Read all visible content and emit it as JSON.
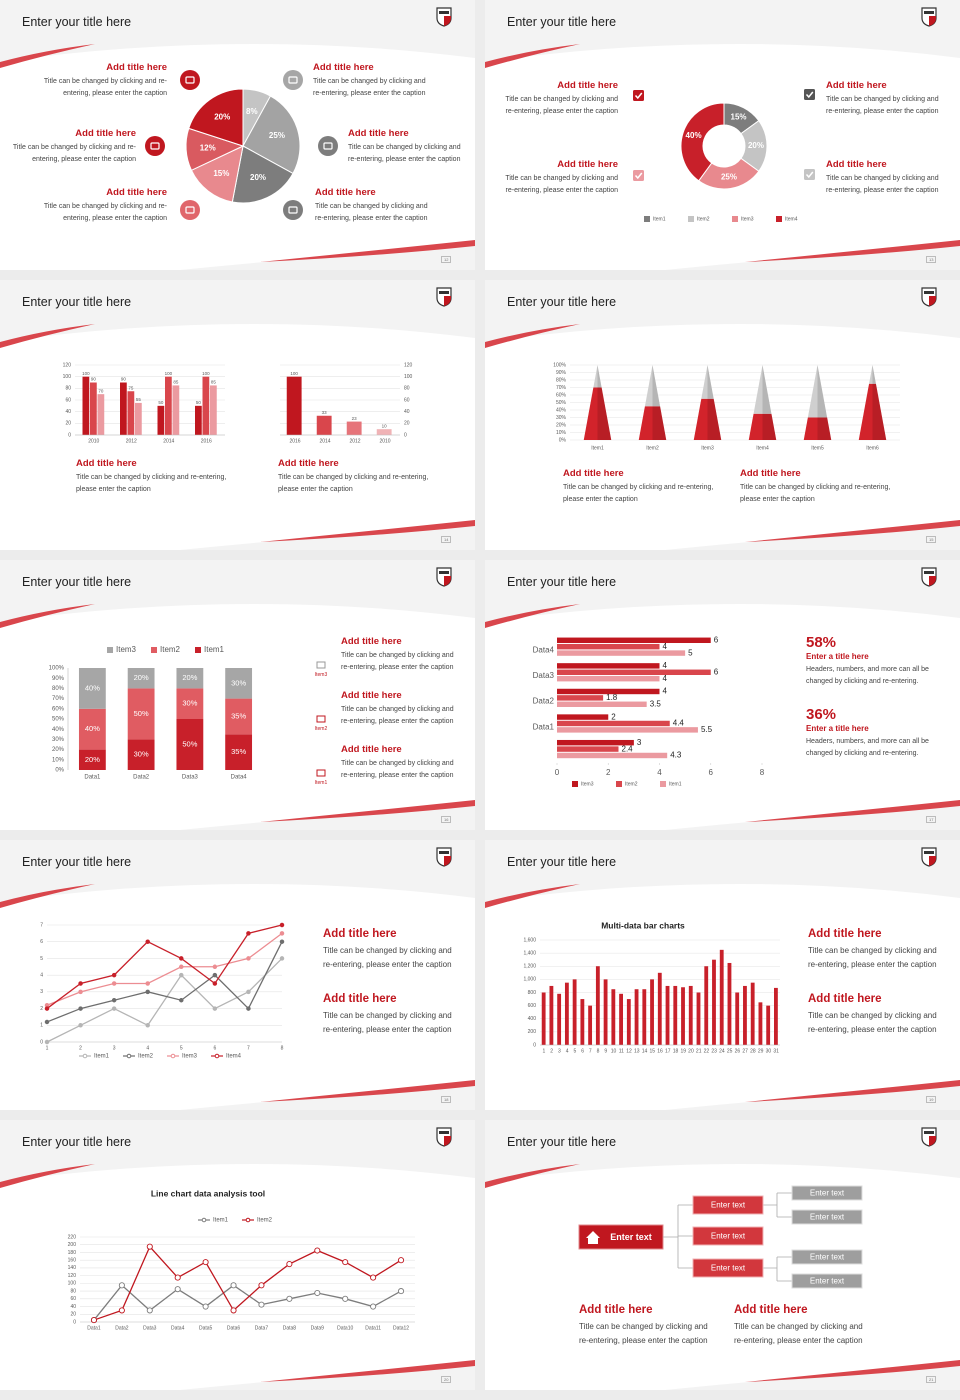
{
  "slides": [
    {
      "title": "Enter your title here",
      "page": "12",
      "blocks": [
        {
          "heading": "Add title here",
          "text": "Title can be changed by clicking and re-entering, please enter the caption"
        },
        {
          "heading": "Add title here",
          "text": "Title can be changed by clicking and re-entering, please enter the caption"
        },
        {
          "heading": "Add title here",
          "text": "Title can be changed by clicking and re-entering, please enter the caption"
        },
        {
          "heading": "Add title here",
          "text": "Title can be changed by clicking and re-entering, please enter the caption"
        },
        {
          "heading": "Add title here",
          "text": "Title can be changed by clicking and re-entering, please enter the caption"
        },
        {
          "heading": "Add title here",
          "text": "Title can be changed by clicking and re-entering, please enter the caption"
        }
      ]
    },
    {
      "title": "Enter your title here",
      "page": "13",
      "blocks": [
        {
          "heading": "Add title here",
          "text": "Title can be changed by clicking and re-entering, please enter the caption"
        },
        {
          "heading": "Add title here",
          "text": "Title can be changed by clicking and re-entering, please enter the caption"
        },
        {
          "heading": "Add title here",
          "text": "Title can be changed by clicking and re-entering, please enter the caption"
        },
        {
          "heading": "Add title here",
          "text": "Title can be changed by clicking and re-entering, please enter the caption"
        }
      ]
    },
    {
      "title": "Enter your title here",
      "page": "14",
      "blocks": [
        {
          "heading": "Add title here",
          "text": "Title can be changed by clicking and re-entering, please enter the caption"
        },
        {
          "heading": "Add title here",
          "text": "Title can be changed by clicking and re-entering, please enter the caption"
        }
      ]
    },
    {
      "title": "Enter your title here",
      "page": "15",
      "blocks": [
        {
          "heading": "Add title here",
          "text": "Title can be changed by clicking and re-entering, please enter the caption"
        },
        {
          "heading": "Add title here",
          "text": "Title can be changed by clicking and re-entering, please enter the caption"
        }
      ]
    },
    {
      "title": "Enter your title here",
      "page": "16",
      "blocks": [
        {
          "icon_label": "Item3",
          "heading": "Add title here",
          "text": "Title can be changed by clicking and re-entering, please enter the caption"
        },
        {
          "icon_label": "Item2",
          "heading": "Add title here",
          "text": "Title can be changed by clicking and re-entering, please enter the caption"
        },
        {
          "icon_label": "Item1",
          "heading": "Add title here",
          "text": "Title can be changed by clicking and re-entering, please enter the caption"
        }
      ]
    },
    {
      "title": "Enter your title here",
      "page": "17",
      "blocks": [
        {
          "heading": "58%",
          "subheading": "Enter a title here",
          "text": "Headers, numbers, and more can all be changed by clicking and re-entering."
        },
        {
          "heading": "36%",
          "subheading": "Enter a title here",
          "text": "Headers, numbers, and more can all be changed by clicking and re-entering."
        }
      ]
    },
    {
      "title": "Enter your title here",
      "page": "18",
      "blocks": [
        {
          "heading": "Add title here",
          "text": "Title can be changed by clicking and re-entering, please enter the caption"
        },
        {
          "heading": "Add title here",
          "text": "Title can be changed by clicking and re-entering, please enter the caption"
        }
      ]
    },
    {
      "title": "Enter your title here",
      "page": "19",
      "blocks": [
        {
          "heading": "Add title here",
          "text": "Title can be changed by clicking and re-entering, please enter the caption"
        },
        {
          "heading": "Add title here",
          "text": "Title can be changed by clicking and re-entering, please enter the caption"
        }
      ]
    },
    {
      "title": "Enter your title here",
      "page": "20",
      "blocks": []
    },
    {
      "title": "Enter your title here",
      "page": "21",
      "diagram": {
        "root": "Enter text",
        "branches": [
          "Enter text",
          "Enter text",
          "Enter text"
        ],
        "leaves": [
          "Enter text",
          "Enter text",
          "Enter text",
          "Enter text"
        ]
      },
      "blocks": [
        {
          "heading": "Add title here",
          "text": "Title can be changed by clicking and re-entering, please enter the caption"
        },
        {
          "heading": "Add title here",
          "text": "Title can be changed by clicking and re-entering, please enter the caption"
        }
      ]
    }
  ],
  "chart_data": [
    {
      "type": "pie",
      "values": [
        8,
        25,
        20,
        15,
        12,
        20
      ],
      "value_labels": [
        "8%",
        "25%",
        "20%",
        "15%",
        "12%",
        "20%"
      ],
      "colors": [
        "#c4c4c4",
        "#a3a3a3",
        "#7d7d7d",
        "#e8898e",
        "#d95a60",
        "#c0171f"
      ]
    },
    {
      "type": "donut",
      "categories": [
        "Item1",
        "Item2",
        "Item3",
        "Item4"
      ],
      "values": [
        15,
        20,
        25,
        40
      ],
      "value_labels": [
        "15%",
        "20%",
        "25%",
        "40%"
      ],
      "colors": [
        "#7d7d7d",
        "#c4c4c4",
        "#e8898e",
        "#c8202a"
      ]
    },
    {
      "type": "bar",
      "categories": [
        "2010",
        "2012",
        "2014",
        "2016"
      ],
      "series": [
        {
          "color": "#c0171f",
          "values": [
            100,
            90,
            50,
            50
          ]
        },
        {
          "color": "#d9464c",
          "values": [
            90,
            75,
            100,
            100
          ]
        },
        {
          "color": "#eb9aa0",
          "values": [
            70,
            55,
            85,
            85
          ]
        }
      ],
      "ylim": [
        0,
        120
      ],
      "yticks": [
        0,
        20,
        40,
        60,
        80,
        100,
        120
      ],
      "grid": true,
      "show_values": true
    },
    {
      "type": "bar",
      "categories": [
        "2016",
        "2014",
        "2012",
        "2010"
      ],
      "values": [
        100,
        33,
        23,
        10
      ],
      "colors": [
        "#c0171f",
        "#d9464c",
        "#e6747a",
        "#f0b3b6"
      ],
      "ylim": [
        0,
        120
      ],
      "yticks": [
        0,
        20,
        40,
        60,
        80,
        100,
        120
      ],
      "y_axis_side": "right",
      "grid": true,
      "show_values": true
    },
    {
      "type": "pyramid",
      "categories": [
        "Item1",
        "Item2",
        "Item3",
        "Item4",
        "Item5",
        "Item6"
      ],
      "series": [
        {
          "color": "#d2232b",
          "values": [
            70,
            45,
            55,
            35,
            30,
            75
          ]
        },
        {
          "color": "#cfcfcf",
          "values": [
            30,
            55,
            45,
            65,
            70,
            25
          ]
        }
      ],
      "ylim": [
        0,
        100
      ],
      "yticks": [
        {
          "value": 0,
          "label": "0%"
        },
        {
          "value": 10,
          "label": "10%"
        },
        {
          "value": 20,
          "label": "20%"
        },
        {
          "value": 30,
          "label": "30%"
        },
        {
          "value": 40,
          "label": "40%"
        },
        {
          "value": 50,
          "label": "50%"
        },
        {
          "value": 60,
          "label": "60%"
        },
        {
          "value": 70,
          "label": "70%"
        },
        {
          "value": 80,
          "label": "80%"
        },
        {
          "value": 90,
          "label": "90%"
        },
        {
          "value": 100,
          "label": "100%"
        }
      ],
      "grid": true
    },
    {
      "type": "stacked_bar",
      "categories": [
        "Data1",
        "Data2",
        "Data3",
        "Data4"
      ],
      "series": [
        {
          "name": "Item3",
          "color": "#a6a6a6",
          "values": [
            40,
            20,
            20,
            30
          ],
          "value_labels": [
            "40%",
            "20%",
            "20%",
            "30%"
          ]
        },
        {
          "name": "Item2",
          "color": "#e05c62",
          "values": [
            40,
            50,
            30,
            35
          ],
          "value_labels": [
            "40%",
            "50%",
            "30%",
            "35%"
          ]
        },
        {
          "name": "Item1",
          "color": "#c8202a",
          "values": [
            20,
            30,
            50,
            35
          ],
          "value_labels": [
            "20%",
            "30%",
            "50%",
            "35%"
          ]
        }
      ],
      "ylim": [
        0,
        100
      ],
      "yticks": [
        {
          "value": 0,
          "label": "0%"
        },
        {
          "value": 10,
          "label": "10%"
        },
        {
          "value": 20,
          "label": "20%"
        },
        {
          "value": 30,
          "label": "30%"
        },
        {
          "value": 40,
          "label": "40%"
        },
        {
          "value": 50,
          "label": "50%"
        },
        {
          "value": 60,
          "label": "60%"
        },
        {
          "value": 70,
          "label": "70%"
        },
        {
          "value": 80,
          "label": "80%"
        },
        {
          "value": 90,
          "label": "90%"
        },
        {
          "value": 100,
          "label": "100%"
        }
      ],
      "grid": false
    },
    {
      "type": "horizontal_bar",
      "categories": [
        null,
        "Data1",
        "Data2",
        "Data3",
        "Data4"
      ],
      "series": [
        {
          "name": "Item3",
          "color": "#c0171f",
          "values": [
            3,
            2,
            4,
            4,
            6
          ]
        },
        {
          "name": "Item2",
          "color": "#d9464c",
          "values": [
            2.4,
            4.4,
            1.8,
            6,
            4
          ]
        },
        {
          "name": "Item1",
          "color": "#eb9aa0",
          "values": [
            4.3,
            5.5,
            3.5,
            4,
            5
          ]
        }
      ],
      "xlim": [
        0,
        8
      ],
      "xticks": [
        0,
        2,
        4,
        6,
        8
      ]
    },
    {
      "type": "line",
      "x": [
        1,
        2,
        3,
        4,
        5,
        6,
        7,
        8
      ],
      "series": [
        {
          "name": "Item1",
          "color": "#b5b5b5",
          "values": [
            0,
            1,
            2,
            1,
            4,
            2,
            3,
            5
          ]
        },
        {
          "name": "Item2",
          "color": "#6e6e6e",
          "values": [
            1.2,
            2,
            2.5,
            3,
            2.5,
            4,
            2,
            6
          ]
        },
        {
          "name": "Item3",
          "color": "#ec8d92",
          "values": [
            2.2,
            3,
            3.5,
            3.5,
            4.5,
            4.5,
            5,
            6.5
          ]
        },
        {
          "name": "Item4",
          "color": "#c8202a",
          "values": [
            2,
            3.5,
            4,
            6,
            5,
            3.5,
            6.5,
            7
          ]
        }
      ],
      "xlim": [
        1,
        8
      ],
      "xticks": [
        1,
        2,
        3,
        4,
        5,
        6,
        7,
        8
      ],
      "ylim": [
        0,
        7
      ],
      "yticks": [
        0,
        1,
        2,
        3,
        4,
        5,
        6,
        7
      ],
      "grid": true
    },
    {
      "type": "bar",
      "title": "Multi-data bar charts",
      "categories": [
        "1",
        "2",
        "3",
        "4",
        "5",
        "6",
        "7",
        "8",
        "9",
        "10",
        "11",
        "12",
        "13",
        "14",
        "15",
        "16",
        "17",
        "18",
        "19",
        "20",
        "21",
        "22",
        "23",
        "24",
        "25",
        "26",
        "27",
        "28",
        "29",
        "30",
        "31"
      ],
      "values": [
        800,
        900,
        780,
        950,
        1000,
        700,
        600,
        1200,
        1000,
        850,
        780,
        700,
        850,
        850,
        1000,
        1100,
        900,
        900,
        880,
        900,
        800,
        1200,
        1300,
        1450,
        1250,
        800,
        900,
        950,
        650,
        600,
        870
      ],
      "color": "#c8202a",
      "ylim": [
        0,
        1600
      ],
      "yticks": [
        0,
        200,
        400,
        600,
        800,
        {
          "value": 1000,
          "label": "1,000"
        },
        {
          "value": 1200,
          "label": "1,200"
        },
        {
          "value": 1400,
          "label": "1,400"
        },
        {
          "value": 1600,
          "label": "1,600"
        }
      ],
      "grid": true
    },
    {
      "type": "line",
      "title": "Line chart data analysis tool",
      "categories": [
        "Data1",
        "Data2",
        "Data3",
        "Data4",
        "Data5",
        "Data6",
        "Data7",
        "Data8",
        "Data9",
        "Data10",
        "Data11",
        "Data12"
      ],
      "series": [
        {
          "name": "Item1",
          "color": "#7d7d7d",
          "values": [
            5,
            95,
            30,
            85,
            40,
            95,
            45,
            60,
            75,
            60,
            40,
            80
          ]
        },
        {
          "name": "Item2",
          "color": "#c0171f",
          "values": [
            5,
            30,
            195,
            115,
            155,
            30,
            95,
            150,
            185,
            155,
            115,
            160
          ]
        }
      ],
      "ylim": [
        0,
        220
      ],
      "yticks": [
        0,
        20,
        40,
        60,
        80,
        100,
        120,
        140,
        160,
        180,
        200,
        220
      ],
      "grid": true,
      "hollow_markers": true
    }
  ]
}
